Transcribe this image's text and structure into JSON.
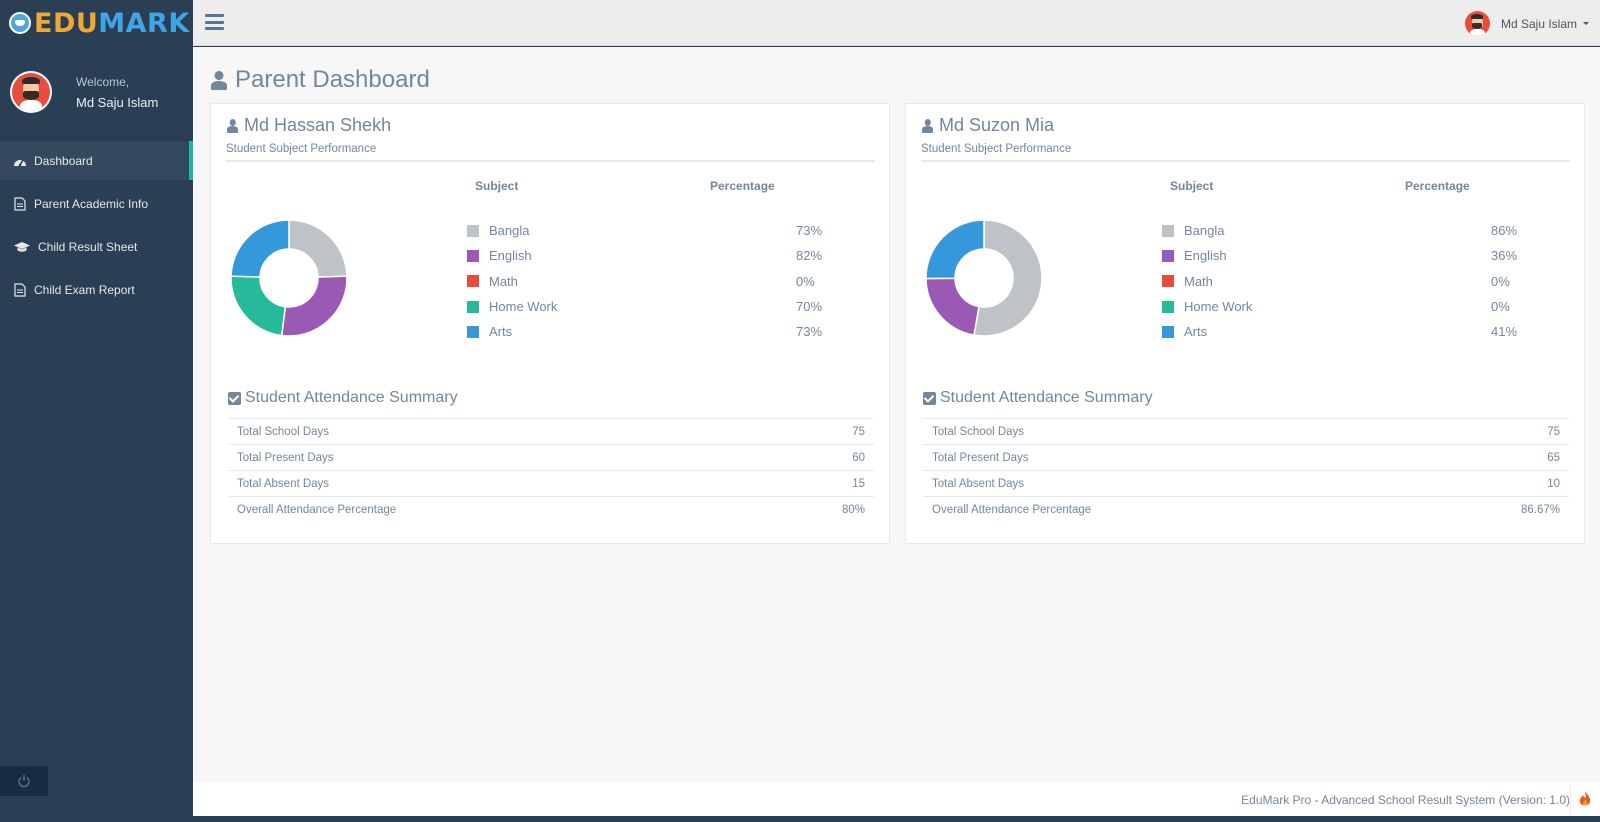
{
  "brand": {
    "part1": "EDU",
    "part2": "MARK"
  },
  "profile": {
    "welcome": "Welcome,",
    "name": "Md Saju Islam"
  },
  "sidebar": {
    "items": [
      {
        "label": "Dashboard",
        "icon": "dashboard-icon",
        "active": true
      },
      {
        "label": "Parent Academic Info",
        "icon": "document-icon"
      },
      {
        "label": "Child Result Sheet",
        "icon": "graduation-cap-icon"
      },
      {
        "label": "Child Exam Report",
        "icon": "document-icon"
      }
    ]
  },
  "topnav": {
    "user_name": "Md Saju Islam"
  },
  "page": {
    "title": "Parent Dashboard"
  },
  "students": [
    {
      "name": "Md Hassan Shekh",
      "subtitle": "Student Subject Performance",
      "col_subject": "Subject",
      "col_percentage": "Percentage",
      "subjects": [
        {
          "name": "Bangla",
          "value": 73,
          "label": "73%",
          "color": "#bdc3c7"
        },
        {
          "name": "English",
          "value": 82,
          "label": "82%",
          "color": "#9b59b6"
        },
        {
          "name": "Math",
          "value": 0,
          "label": "0%",
          "color": "#e74c3c"
        },
        {
          "name": "Home Work",
          "value": 70,
          "label": "70%",
          "color": "#26b99a"
        },
        {
          "name": "Arts",
          "value": 73,
          "label": "73%",
          "color": "#3498db"
        }
      ],
      "attendance_title": "Student Attendance Summary",
      "attendance": [
        {
          "label": "Total School Days",
          "value": "75"
        },
        {
          "label": "Total Present Days",
          "value": "60"
        },
        {
          "label": "Total Absent Days",
          "value": "15"
        },
        {
          "label": "Overall Attendance Percentage",
          "value": "80%"
        }
      ]
    },
    {
      "name": "Md Suzon Mia",
      "subtitle": "Student Subject Performance",
      "col_subject": "Subject",
      "col_percentage": "Percentage",
      "subjects": [
        {
          "name": "Bangla",
          "value": 86,
          "label": "86%",
          "color": "#bdc3c7"
        },
        {
          "name": "English",
          "value": 36,
          "label": "36%",
          "color": "#9b59b6"
        },
        {
          "name": "Math",
          "value": 0,
          "label": "0%",
          "color": "#e74c3c"
        },
        {
          "name": "Home Work",
          "value": 0,
          "label": "0%",
          "color": "#26b99a"
        },
        {
          "name": "Arts",
          "value": 41,
          "label": "41%",
          "color": "#3498db"
        }
      ],
      "attendance_title": "Student Attendance Summary",
      "attendance": [
        {
          "label": "Total School Days",
          "value": "75"
        },
        {
          "label": "Total Present Days",
          "value": "65"
        },
        {
          "label": "Total Absent Days",
          "value": "10"
        },
        {
          "label": "Overall Attendance Percentage",
          "value": "86.67%"
        }
      ]
    }
  ],
  "footer": {
    "text": "EduMark Pro - Advanced School Result System (Version: 1.0)"
  }
}
